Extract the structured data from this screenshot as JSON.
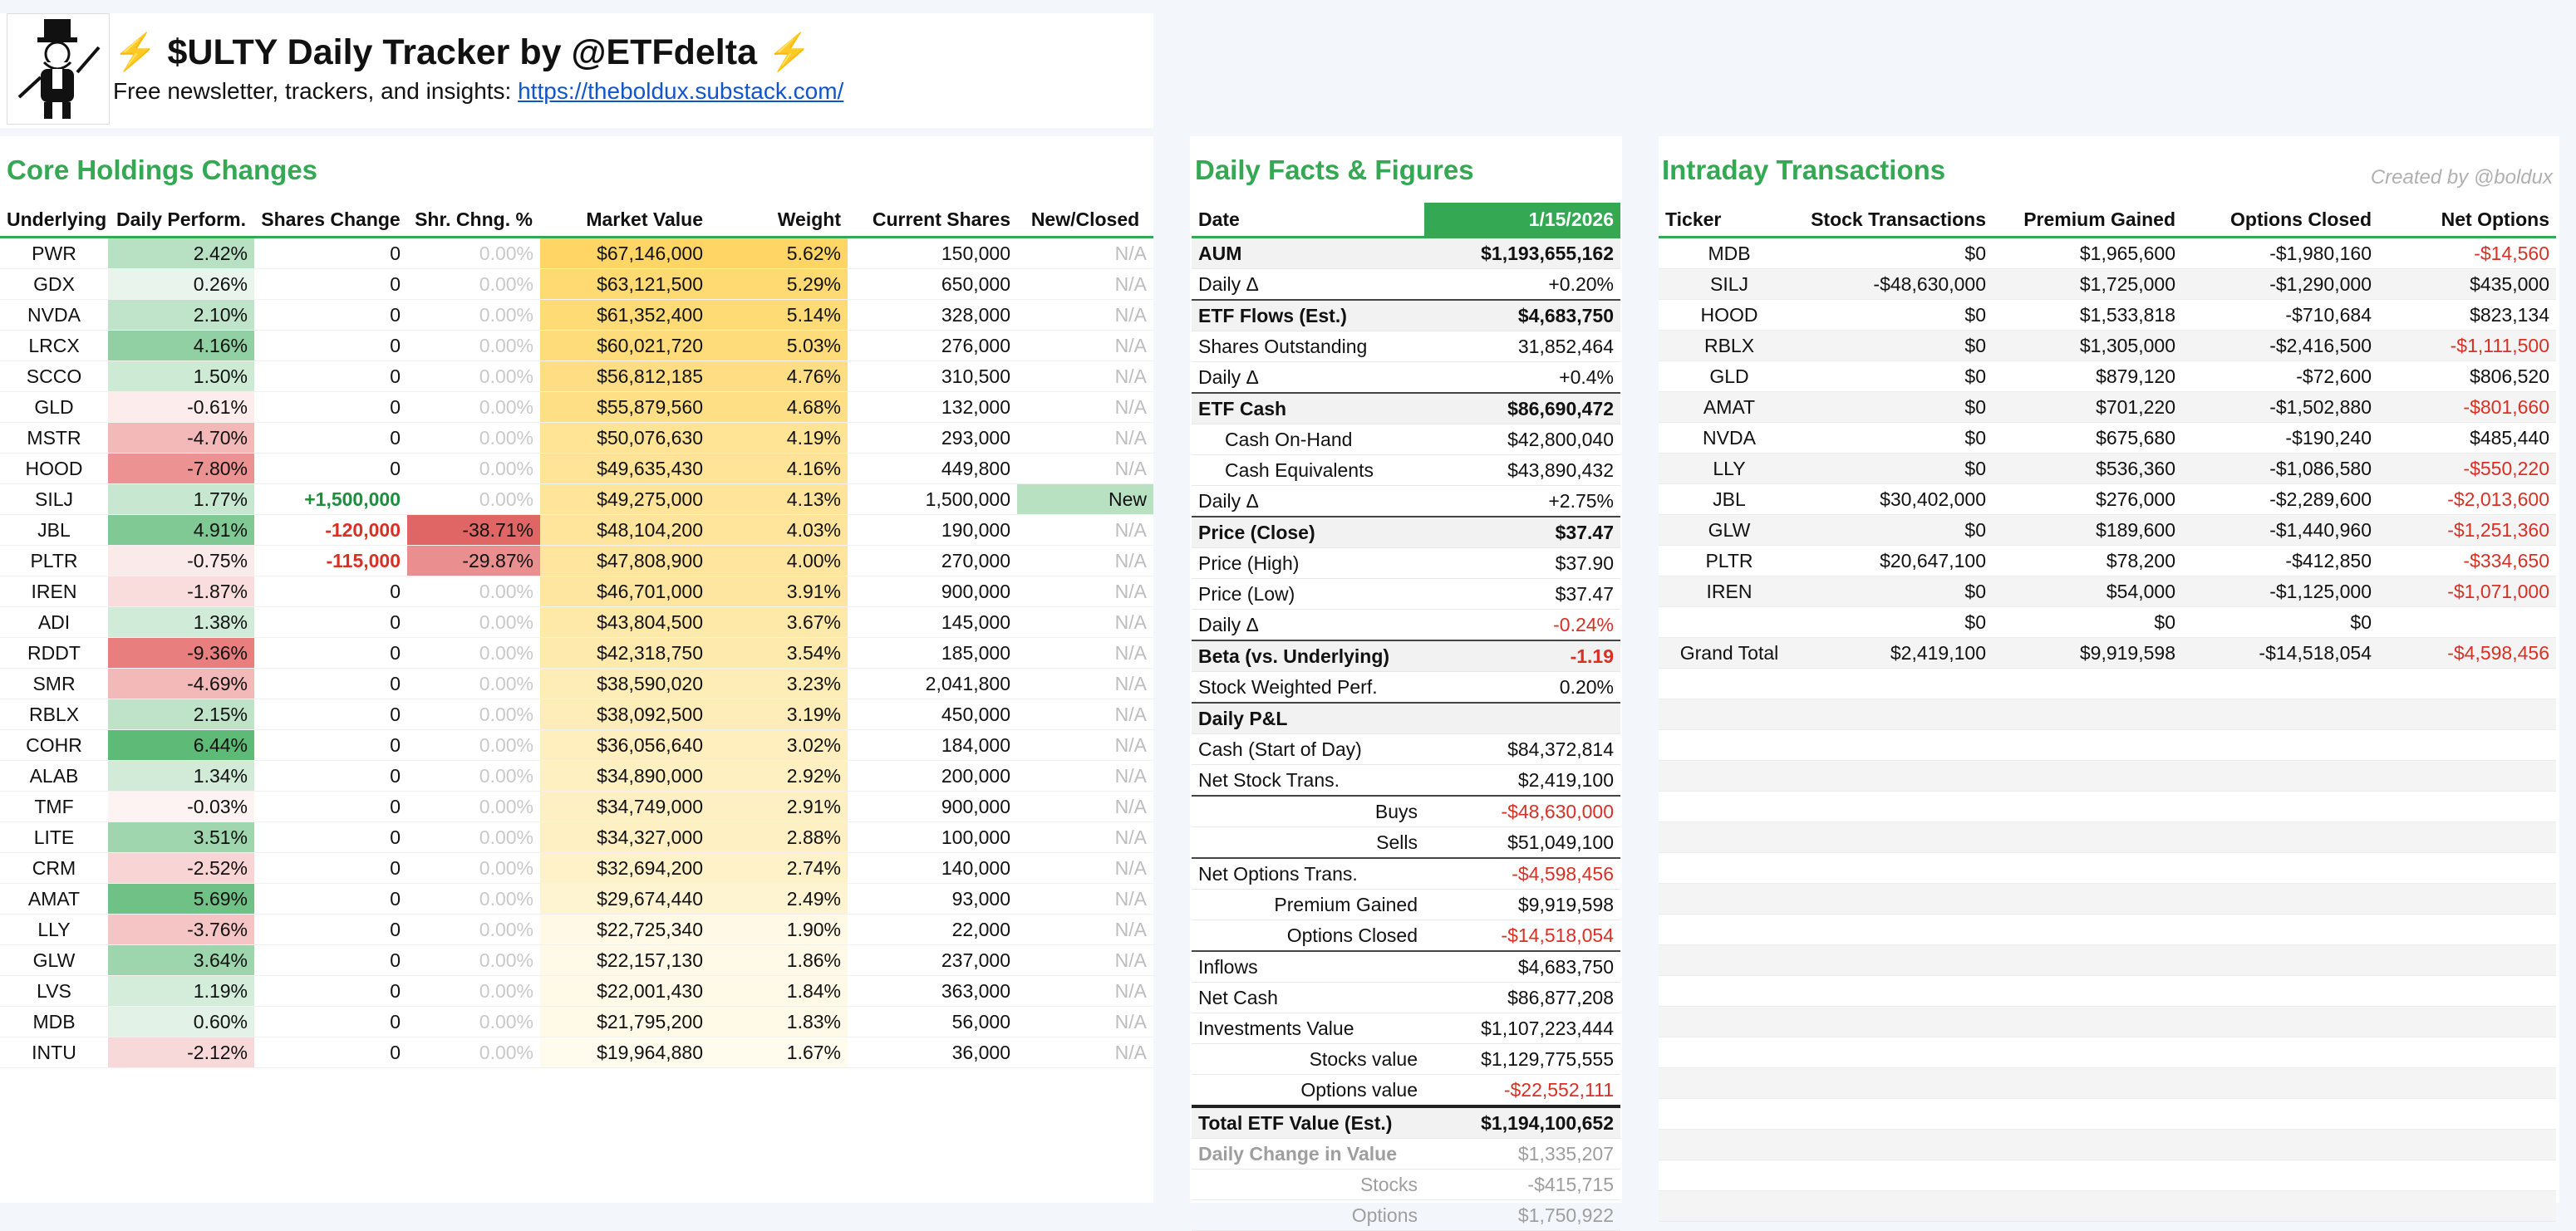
{
  "header": {
    "title": "$ULTY Daily Tracker by @ETFdelta",
    "subtitle_text": "Free newsletter, trackers, and insights: ",
    "subtitle_link": "https://theboldux.substack.com/",
    "logo_icon": "monopoly-man-logo",
    "bolt_icon": "⚡"
  },
  "core": {
    "title": "Core Holdings Changes",
    "columns": [
      "Underlying",
      "Daily Perform.",
      "Shares Change",
      "Shr. Chng. %",
      "Market Value",
      "Weight",
      "Current Shares",
      "New/Closed"
    ],
    "rows": [
      {
        "ticker": "PWR",
        "perf": "2.42%",
        "chg": "0",
        "pct": "0.00%",
        "mv": "$67,146,000",
        "wt": "5.62%",
        "shares": "150,000",
        "nc": "N/A"
      },
      {
        "ticker": "GDX",
        "perf": "0.26%",
        "chg": "0",
        "pct": "0.00%",
        "mv": "$63,121,500",
        "wt": "5.29%",
        "shares": "650,000",
        "nc": "N/A"
      },
      {
        "ticker": "NVDA",
        "perf": "2.10%",
        "chg": "0",
        "pct": "0.00%",
        "mv": "$61,352,400",
        "wt": "5.14%",
        "shares": "328,000",
        "nc": "N/A"
      },
      {
        "ticker": "LRCX",
        "perf": "4.16%",
        "chg": "0",
        "pct": "0.00%",
        "mv": "$60,021,720",
        "wt": "5.03%",
        "shares": "276,000",
        "nc": "N/A"
      },
      {
        "ticker": "SCCO",
        "perf": "1.50%",
        "chg": "0",
        "pct": "0.00%",
        "mv": "$56,812,185",
        "wt": "4.76%",
        "shares": "310,500",
        "nc": "N/A"
      },
      {
        "ticker": "GLD",
        "perf": "-0.61%",
        "chg": "0",
        "pct": "0.00%",
        "mv": "$55,879,560",
        "wt": "4.68%",
        "shares": "132,000",
        "nc": "N/A"
      },
      {
        "ticker": "MSTR",
        "perf": "-4.70%",
        "chg": "0",
        "pct": "0.00%",
        "mv": "$50,076,630",
        "wt": "4.19%",
        "shares": "293,000",
        "nc": "N/A"
      },
      {
        "ticker": "HOOD",
        "perf": "-7.80%",
        "chg": "0",
        "pct": "0.00%",
        "mv": "$49,635,430",
        "wt": "4.16%",
        "shares": "449,800",
        "nc": "N/A"
      },
      {
        "ticker": "SILJ",
        "perf": "1.77%",
        "chg": "+1,500,000",
        "pct": "0.00%",
        "mv": "$49,275,000",
        "wt": "4.13%",
        "shares": "1,500,000",
        "nc": "New"
      },
      {
        "ticker": "JBL",
        "perf": "4.91%",
        "chg": "-120,000",
        "pct": "-38.71%",
        "mv": "$48,104,200",
        "wt": "4.03%",
        "shares": "190,000",
        "nc": "N/A"
      },
      {
        "ticker": "PLTR",
        "perf": "-0.75%",
        "chg": "-115,000",
        "pct": "-29.87%",
        "mv": "$47,808,900",
        "wt": "4.00%",
        "shares": "270,000",
        "nc": "N/A"
      },
      {
        "ticker": "IREN",
        "perf": "-1.87%",
        "chg": "0",
        "pct": "0.00%",
        "mv": "$46,701,000",
        "wt": "3.91%",
        "shares": "900,000",
        "nc": "N/A"
      },
      {
        "ticker": "ADI",
        "perf": "1.38%",
        "chg": "0",
        "pct": "0.00%",
        "mv": "$43,804,500",
        "wt": "3.67%",
        "shares": "145,000",
        "nc": "N/A"
      },
      {
        "ticker": "RDDT",
        "perf": "-9.36%",
        "chg": "0",
        "pct": "0.00%",
        "mv": "$42,318,750",
        "wt": "3.54%",
        "shares": "185,000",
        "nc": "N/A"
      },
      {
        "ticker": "SMR",
        "perf": "-4.69%",
        "chg": "0",
        "pct": "0.00%",
        "mv": "$38,590,020",
        "wt": "3.23%",
        "shares": "2,041,800",
        "nc": "N/A"
      },
      {
        "ticker": "RBLX",
        "perf": "2.15%",
        "chg": "0",
        "pct": "0.00%",
        "mv": "$38,092,500",
        "wt": "3.19%",
        "shares": "450,000",
        "nc": "N/A"
      },
      {
        "ticker": "COHR",
        "perf": "6.44%",
        "chg": "0",
        "pct": "0.00%",
        "mv": "$36,056,640",
        "wt": "3.02%",
        "shares": "184,000",
        "nc": "N/A"
      },
      {
        "ticker": "ALAB",
        "perf": "1.34%",
        "chg": "0",
        "pct": "0.00%",
        "mv": "$34,890,000",
        "wt": "2.92%",
        "shares": "200,000",
        "nc": "N/A"
      },
      {
        "ticker": "TMF",
        "perf": "-0.03%",
        "chg": "0",
        "pct": "0.00%",
        "mv": "$34,749,000",
        "wt": "2.91%",
        "shares": "900,000",
        "nc": "N/A"
      },
      {
        "ticker": "LITE",
        "perf": "3.51%",
        "chg": "0",
        "pct": "0.00%",
        "mv": "$34,327,000",
        "wt": "2.88%",
        "shares": "100,000",
        "nc": "N/A"
      },
      {
        "ticker": "CRM",
        "perf": "-2.52%",
        "chg": "0",
        "pct": "0.00%",
        "mv": "$32,694,200",
        "wt": "2.74%",
        "shares": "140,000",
        "nc": "N/A"
      },
      {
        "ticker": "AMAT",
        "perf": "5.69%",
        "chg": "0",
        "pct": "0.00%",
        "mv": "$29,674,440",
        "wt": "2.49%",
        "shares": "93,000",
        "nc": "N/A"
      },
      {
        "ticker": "LLY",
        "perf": "-3.76%",
        "chg": "0",
        "pct": "0.00%",
        "mv": "$22,725,340",
        "wt": "1.90%",
        "shares": "22,000",
        "nc": "N/A"
      },
      {
        "ticker": "GLW",
        "perf": "3.64%",
        "chg": "0",
        "pct": "0.00%",
        "mv": "$22,157,130",
        "wt": "1.86%",
        "shares": "237,000",
        "nc": "N/A"
      },
      {
        "ticker": "LVS",
        "perf": "1.19%",
        "chg": "0",
        "pct": "0.00%",
        "mv": "$22,001,430",
        "wt": "1.84%",
        "shares": "363,000",
        "nc": "N/A"
      },
      {
        "ticker": "MDB",
        "perf": "0.60%",
        "chg": "0",
        "pct": "0.00%",
        "mv": "$21,795,200",
        "wt": "1.83%",
        "shares": "56,000",
        "nc": "N/A"
      },
      {
        "ticker": "INTU",
        "perf": "-2.12%",
        "chg": "0",
        "pct": "0.00%",
        "mv": "$19,964,880",
        "wt": "1.67%",
        "shares": "36,000",
        "nc": "N/A"
      }
    ]
  },
  "facts": {
    "title": "Daily Facts & Figures",
    "date_label": "Date",
    "date_value": "1/15/2026",
    "rows": [
      {
        "label": "AUM",
        "value": "$1,193,655,162",
        "style": "bold shade"
      },
      {
        "label": "Daily Δ",
        "value": "+0.20%",
        "style": ""
      },
      {
        "label": "ETF Flows (Est.)",
        "value": "$4,683,750",
        "style": "bold shade topb"
      },
      {
        "label": "Shares Outstanding",
        "value": "31,852,464",
        "style": ""
      },
      {
        "label": "Daily Δ",
        "value": "+0.4%",
        "style": ""
      },
      {
        "label": "ETF Cash",
        "value": "$86,690,472",
        "style": "bold shade topb"
      },
      {
        "label": "Cash On-Hand",
        "value": "$42,800,040",
        "style": "indent"
      },
      {
        "label": "Cash Equivalents",
        "value": "$43,890,432",
        "style": "indent"
      },
      {
        "label": "Daily Δ",
        "value": "+2.75%",
        "style": ""
      },
      {
        "label": "Price (Close)",
        "value": "$37.47",
        "style": "bold shade topb"
      },
      {
        "label": "Price (High)",
        "value": "$37.90",
        "style": ""
      },
      {
        "label": "Price (Low)",
        "value": "$37.47",
        "style": ""
      },
      {
        "label": "Daily Δ",
        "value": "-0.24%",
        "style": "negval"
      },
      {
        "label": "Beta (vs. Underlying)",
        "value": "-1.19",
        "style": "bold shade topb negval"
      },
      {
        "label": "Stock Weighted Perf.",
        "value": "0.20%",
        "style": ""
      },
      {
        "label": "Daily P&L",
        "value": "",
        "style": "bold shade topb"
      },
      {
        "label": "Cash (Start of Day)",
        "value": "$84,372,814",
        "style": ""
      },
      {
        "label": "Net Stock Trans.",
        "value": "$2,419,100",
        "style": ""
      },
      {
        "label": "Buys",
        "value": "-$48,630,000",
        "style": "indent2 negval topb"
      },
      {
        "label": "Sells",
        "value": "$51,049,100",
        "style": "indent2"
      },
      {
        "label": "Net Options Trans.",
        "value": "-$4,598,456",
        "style": "negval topb"
      },
      {
        "label": "Premium Gained",
        "value": "$9,919,598",
        "style": "indent2"
      },
      {
        "label": "Options Closed",
        "value": "-$14,518,054",
        "style": "indent2 negval"
      },
      {
        "label": "Inflows",
        "value": "$4,683,750",
        "style": "topb"
      },
      {
        "label": "Net Cash",
        "value": "$86,877,208",
        "style": ""
      },
      {
        "label": "Investments Value",
        "value": "$1,107,223,444",
        "style": ""
      },
      {
        "label": "Stocks value",
        "value": "$1,129,775,555",
        "style": "indent2"
      },
      {
        "label": "Options value",
        "value": "-$22,552,111",
        "style": "indent2 negval"
      },
      {
        "label": "Total ETF Value (Est.)",
        "value": "$1,194,100,652",
        "style": "bold shade thickb"
      },
      {
        "label": "Daily Change in Value",
        "value": "$1,335,207",
        "style": "gray graybold"
      },
      {
        "label": "Stocks",
        "value": "-$415,715",
        "style": "gray indent2"
      },
      {
        "label": "Options",
        "value": "$1,750,922",
        "style": "gray indent2"
      }
    ]
  },
  "trans": {
    "title": "Intraday Transactions",
    "credit": "Created by @boldux",
    "columns": [
      "Ticker",
      "Stock Transactions",
      "Premium Gained",
      "Options Closed",
      "Net Options"
    ],
    "rows": [
      {
        "ticker": "MDB",
        "stock": "$0",
        "prem": "$1,965,600",
        "closed": "-$1,980,160",
        "net": "-$14,560"
      },
      {
        "ticker": "SILJ",
        "stock": "-$48,630,000",
        "prem": "$1,725,000",
        "closed": "-$1,290,000",
        "net": "$435,000"
      },
      {
        "ticker": "HOOD",
        "stock": "$0",
        "prem": "$1,533,818",
        "closed": "-$710,684",
        "net": "$823,134"
      },
      {
        "ticker": "RBLX",
        "stock": "$0",
        "prem": "$1,305,000",
        "closed": "-$2,416,500",
        "net": "-$1,111,500"
      },
      {
        "ticker": "GLD",
        "stock": "$0",
        "prem": "$879,120",
        "closed": "-$72,600",
        "net": "$806,520"
      },
      {
        "ticker": "AMAT",
        "stock": "$0",
        "prem": "$701,220",
        "closed": "-$1,502,880",
        "net": "-$801,660"
      },
      {
        "ticker": "NVDA",
        "stock": "$0",
        "prem": "$675,680",
        "closed": "-$190,240",
        "net": "$485,440"
      },
      {
        "ticker": "LLY",
        "stock": "$0",
        "prem": "$536,360",
        "closed": "-$1,086,580",
        "net": "-$550,220"
      },
      {
        "ticker": "JBL",
        "stock": "$30,402,000",
        "prem": "$276,000",
        "closed": "-$2,289,600",
        "net": "-$2,013,600"
      },
      {
        "ticker": "GLW",
        "stock": "$0",
        "prem": "$189,600",
        "closed": "-$1,440,960",
        "net": "-$1,251,360"
      },
      {
        "ticker": "PLTR",
        "stock": "$20,647,100",
        "prem": "$78,200",
        "closed": "-$412,850",
        "net": "-$334,650"
      },
      {
        "ticker": "IREN",
        "stock": "$0",
        "prem": "$54,000",
        "closed": "-$1,125,000",
        "net": "-$1,071,000"
      },
      {
        "ticker": "",
        "stock": "$0",
        "prem": "$0",
        "closed": "$0",
        "net": ""
      },
      {
        "ticker": "Grand Total",
        "stock": "$2,419,100",
        "prem": "$9,919,598",
        "closed": "-$14,518,054",
        "net": "-$4,598,456"
      }
    ]
  },
  "colors": {
    "accent": "#34a853",
    "negative": "#d93025",
    "link": "#1155cc"
  }
}
